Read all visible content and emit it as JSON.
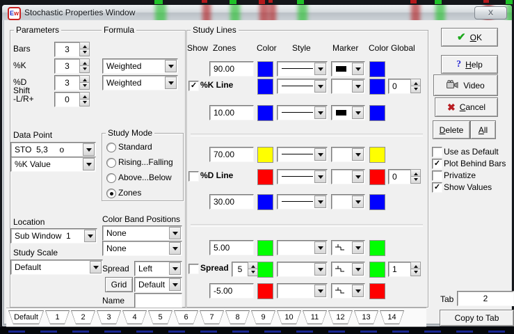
{
  "window": {
    "title": "Stochastic Properties Window",
    "icon_e": "E",
    "icon_w": "w",
    "close_label": "X"
  },
  "colors": {
    "line_blue": "#0000ff",
    "line_red": "#ff0000",
    "line_green": "#00ff00",
    "line_yellow": "#ffff00",
    "ok_check": "#1ca81c",
    "cancel_x": "#b81d22",
    "help_q": "#2b2bd4",
    "candle_green": "#1ec227",
    "candle_red": "#b5191c"
  },
  "parameters": {
    "group_label": "Parameters",
    "rows": [
      {
        "label": "Bars",
        "value": "3"
      },
      {
        "label": "%K",
        "value": "3"
      },
      {
        "label": "%D",
        "value": "3"
      },
      {
        "label": "Shift\n-L/R+",
        "value": "0"
      }
    ]
  },
  "formula": {
    "group_label": "Formula",
    "selects": [
      {
        "value": "Weighted"
      },
      {
        "value": "Weighted"
      }
    ]
  },
  "data_point": {
    "label": "Data Point",
    "selects": [
      {
        "value": "STO  5,3     o"
      },
      {
        "value": "%K Value"
      }
    ]
  },
  "study_mode": {
    "group_label": "Study Mode",
    "options": [
      {
        "label": "Standard",
        "selected": false
      },
      {
        "label": "Rising...Falling",
        "selected": false
      },
      {
        "label": "Above...Below",
        "selected": false
      },
      {
        "label": "Zones",
        "selected": true
      }
    ]
  },
  "location": {
    "label": "Location",
    "value": "Sub Window  1"
  },
  "study_scale": {
    "label": "Study Scale",
    "value": "Default"
  },
  "color_band": {
    "label": "Color Band Positions",
    "selects": [
      {
        "value": "None"
      },
      {
        "value": "None"
      }
    ]
  },
  "spread_select": {
    "label": "Spread",
    "value": "Left"
  },
  "grid_select": {
    "button_label": "Grid",
    "value": "Default"
  },
  "name_field": {
    "label": "Name",
    "value": ""
  },
  "study_lines": {
    "group_label": "Study Lines",
    "headers": [
      "Show",
      "Zones",
      "Color",
      "Style",
      "Marker",
      "Color",
      "Global"
    ],
    "rows": [
      {
        "kind": "zone",
        "value": "90.00",
        "color1": "#0000ff",
        "style": "line",
        "marker": "filled",
        "color2": "#0000ff"
      },
      {
        "kind": "line",
        "label": "%K Line",
        "checked": true,
        "color1": "#0000ff",
        "style": "line",
        "marker": "empty",
        "color2": "#0000ff",
        "global": "0"
      },
      {
        "kind": "zone",
        "value": "10.00",
        "color1": "#0000ff",
        "style": "line",
        "marker": "filled",
        "color2": "#0000ff"
      },
      {
        "kind": "zone",
        "value": "70.00",
        "color1": "#ffff00",
        "style": "line",
        "marker": "empty",
        "color2": "#ffff00"
      },
      {
        "kind": "line",
        "label": "%D Line",
        "checked": false,
        "color1": "#ff0000",
        "style": "line",
        "marker": "empty",
        "color2": "#ff0000",
        "global": "0"
      },
      {
        "kind": "zone",
        "value": "30.00",
        "color1": "#0000ff",
        "style": "line",
        "marker": "empty",
        "color2": "#0000ff"
      },
      {
        "kind": "zone",
        "value": "5.00",
        "color1": "#00ff00",
        "style": "empty",
        "marker": "step",
        "color2": "#00ff00"
      },
      {
        "kind": "spread",
        "label": "Spread",
        "checked": false,
        "spin_value": "5",
        "color1": "#00ff00",
        "style": "empty",
        "marker": "step",
        "color2": "#00ff00",
        "global": "1"
      },
      {
        "kind": "zone",
        "value": "-5.00",
        "color1": "#ff0000",
        "style": "empty",
        "marker": "step",
        "color2": "#ff0000"
      }
    ]
  },
  "actions": {
    "ok": "OK",
    "help": "Help",
    "video": "Video",
    "cancel": "Cancel",
    "delete": "Delete",
    "all": "All"
  },
  "options": [
    {
      "label": "Use as Default",
      "checked": false
    },
    {
      "label": "Plot Behind Bars",
      "checked": true
    },
    {
      "label": "Privatize",
      "checked": false
    },
    {
      "label": "Show Values",
      "checked": true
    }
  ],
  "tab_box": {
    "label": "Tab",
    "value": "2",
    "copy_label": "Copy to Tab"
  },
  "footer_tabs": [
    {
      "label": "Default"
    },
    {
      "label": "1"
    },
    {
      "label": "2"
    },
    {
      "label": "3"
    },
    {
      "label": "4"
    },
    {
      "label": "5"
    },
    {
      "label": "6"
    },
    {
      "label": "7"
    },
    {
      "label": "8"
    },
    {
      "label": "9"
    },
    {
      "label": "10"
    },
    {
      "label": "11"
    },
    {
      "label": "12"
    },
    {
      "label": "13"
    },
    {
      "label": "14"
    }
  ]
}
